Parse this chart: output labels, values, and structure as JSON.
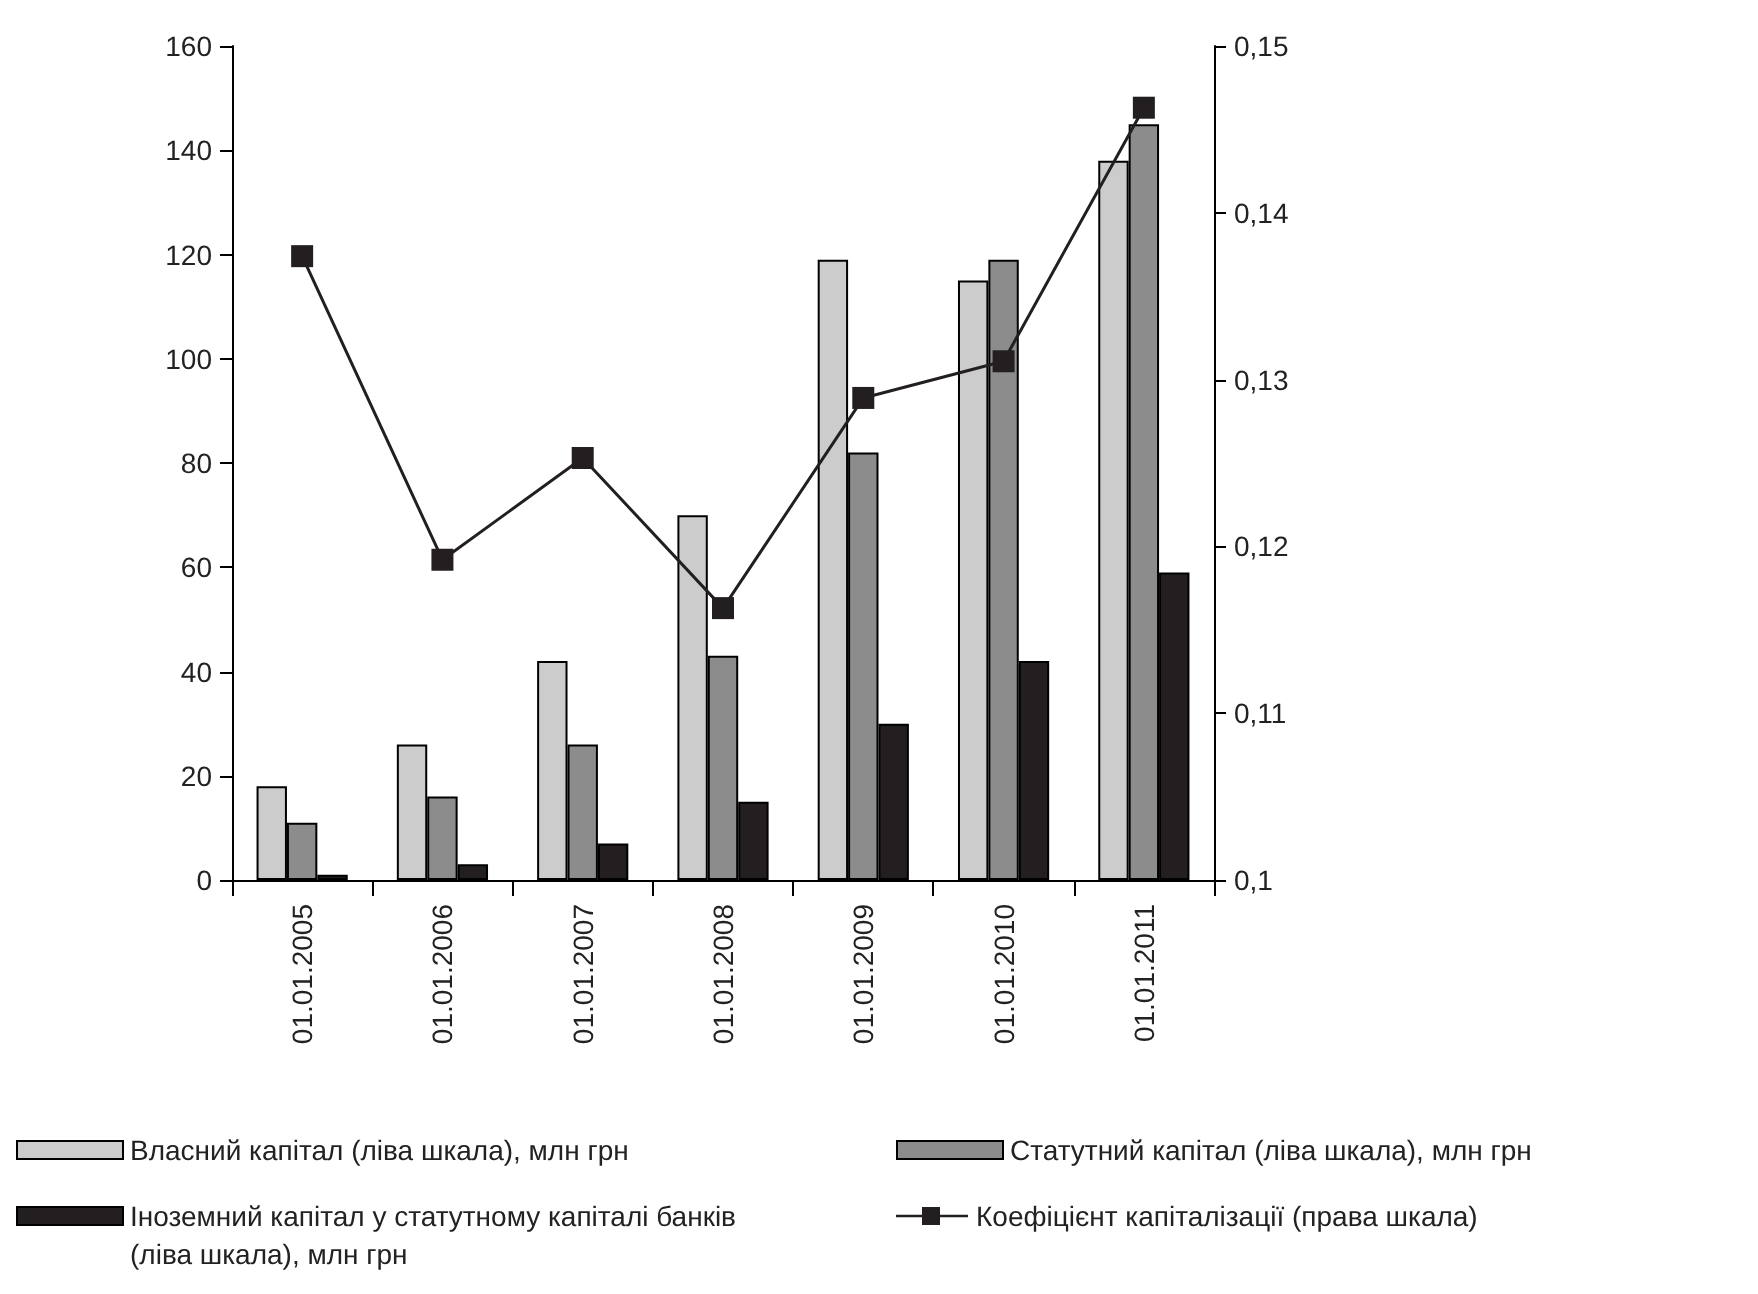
{
  "chart_data": {
    "type": "bar",
    "categories": [
      "01.01.2005",
      "01.01.2006",
      "01.01.2007",
      "01.01.2008",
      "01.01.2009",
      "01.01.2010",
      "01.01.2011"
    ],
    "series": [
      {
        "name": "Власний капітал (ліва шкала), млн грн",
        "color": "#cccccc",
        "values": [
          18,
          26,
          42,
          70,
          119,
          115,
          138
        ]
      },
      {
        "name": "Статутний капітал (ліва шкала), млн грн",
        "color": "#8c8c8c",
        "values": [
          11,
          16,
          26,
          43,
          82,
          119,
          145
        ]
      },
      {
        "name": "Іноземний капітал у статутному капіталі банків (ліва шкала), млн грн",
        "color": "#231f20",
        "values": [
          1,
          3,
          7,
          15,
          30,
          42,
          59
        ]
      },
      {
        "name": "Коефіцієнт капіталізації (права шкала)",
        "color": "#231f20",
        "type": "line",
        "axis": "y2",
        "marker": "square",
        "values": [
          0.1374,
          0.1192,
          0.1253,
          0.1163,
          0.1289,
          0.1311,
          0.1463
        ]
      }
    ],
    "ylim": [
      0,
      160
    ],
    "yticks": [
      0,
      20,
      40,
      60,
      80,
      100,
      120,
      140,
      160
    ],
    "y2lim": [
      0.1,
      0.15
    ],
    "y2ticks": [
      {
        "value": 0.1,
        "label": "0,1"
      },
      {
        "value": 0.11,
        "label": "0,11"
      },
      {
        "value": 0.12,
        "label": "0,12"
      },
      {
        "value": 0.13,
        "label": "0,13"
      },
      {
        "value": 0.14,
        "label": "0,14"
      },
      {
        "value": 0.15,
        "label": "0,15"
      }
    ],
    "grid": false,
    "legend": "bottom"
  }
}
